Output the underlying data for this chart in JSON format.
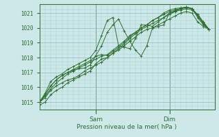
{
  "title": "",
  "xlabel": "Pression niveau de la mer( hPa )",
  "bg_color": "#cce8e8",
  "grid_color_minor": "#aacfcf",
  "grid_color_major": "#88bbbb",
  "line_color": "#2d6e2d",
  "axis_label_color": "#2d6e2d",
  "ylim": [
    1014.5,
    1021.6
  ],
  "xlim": [
    0,
    62
  ],
  "yticks": [
    1015,
    1016,
    1017,
    1018,
    1019,
    1020,
    1021
  ],
  "sam_x": 20,
  "dim_x": 46,
  "series": [
    {
      "x": [
        0,
        2,
        4,
        6,
        8,
        10,
        12,
        14,
        16,
        18,
        20,
        22,
        24,
        26,
        28,
        30,
        32,
        34,
        36,
        38,
        40,
        42,
        44,
        46,
        48,
        50,
        52,
        54,
        56,
        58,
        60
      ],
      "y": [
        1015.0,
        1015.3,
        1015.8,
        1016.1,
        1016.3,
        1016.5,
        1016.6,
        1016.8,
        1017.1,
        1017.3,
        1017.5,
        1017.7,
        1018.0,
        1018.3,
        1018.6,
        1018.9,
        1019.3,
        1019.6,
        1019.9,
        1020.1,
        1020.3,
        1020.5,
        1020.7,
        1020.9,
        1021.1,
        1021.2,
        1021.3,
        1021.2,
        1020.9,
        1020.4,
        1019.9
      ]
    },
    {
      "x": [
        0,
        2,
        4,
        6,
        8,
        10,
        12,
        14,
        16,
        18,
        20,
        22,
        24,
        26,
        28,
        30,
        32,
        34,
        36,
        38,
        40,
        42,
        44,
        46,
        48,
        50,
        52,
        54,
        56,
        58,
        60
      ],
      "y": [
        1015.0,
        1015.4,
        1015.9,
        1016.3,
        1016.6,
        1016.9,
        1017.1,
        1017.3,
        1017.5,
        1017.7,
        1017.9,
        1018.1,
        1018.2,
        1018.5,
        1018.8,
        1019.1,
        1019.5,
        1019.7,
        1020.0,
        1020.2,
        1020.5,
        1020.7,
        1020.9,
        1021.1,
        1021.2,
        1021.3,
        1021.35,
        1021.3,
        1020.8,
        1020.3,
        1019.9
      ]
    },
    {
      "x": [
        0,
        2,
        4,
        6,
        8,
        10,
        12,
        14,
        16,
        18,
        20,
        22,
        24,
        26,
        28,
        30,
        32,
        34,
        36,
        38,
        40,
        42,
        44,
        46,
        48,
        50,
        52,
        54,
        56,
        58,
        60
      ],
      "y": [
        1015.0,
        1015.5,
        1016.1,
        1016.5,
        1016.8,
        1017.0,
        1017.2,
        1017.4,
        1017.6,
        1017.8,
        1018.1,
        1018.2,
        1018.15,
        1018.4,
        1018.7,
        1019.0,
        1019.4,
        1019.7,
        1020.0,
        1020.2,
        1020.5,
        1020.7,
        1021.0,
        1021.2,
        1021.3,
        1021.35,
        1021.4,
        1021.3,
        1020.9,
        1020.4,
        1019.9
      ]
    },
    {
      "x": [
        0,
        2,
        4,
        6,
        8,
        10,
        12,
        14,
        16,
        18,
        20,
        22,
        24,
        26,
        28,
        30,
        32,
        34,
        36,
        38,
        40,
        42,
        44,
        46,
        48,
        50,
        52,
        54,
        56,
        58,
        60
      ],
      "y": [
        1015.0,
        1015.5,
        1016.1,
        1016.5,
        1016.8,
        1017.0,
        1017.15,
        1017.25,
        1017.3,
        1017.5,
        1018.15,
        1018.8,
        1019.7,
        1020.2,
        1020.6,
        1019.8,
        1019.1,
        1018.5,
        1018.1,
        1018.8,
        1020.0,
        1020.1,
        1020.2,
        1021.0,
        1021.15,
        1021.3,
        1021.4,
        1021.3,
        1020.8,
        1020.3,
        1019.9
      ]
    },
    {
      "x": [
        0,
        2,
        4,
        6,
        8,
        10,
        12,
        14,
        16,
        18,
        20,
        22,
        24,
        26,
        28,
        30,
        32,
        34,
        36,
        38,
        40,
        42,
        44,
        46,
        48,
        50,
        52,
        54,
        56,
        58,
        60
      ],
      "y": [
        1015.0,
        1015.6,
        1016.4,
        1016.7,
        1016.9,
        1017.2,
        1017.4,
        1017.6,
        1017.8,
        1018.0,
        1018.5,
        1019.5,
        1020.5,
        1020.7,
        1018.8,
        1018.7,
        1018.6,
        1019.3,
        1020.2,
        1020.2,
        1020.1,
        1020.4,
        1020.7,
        1021.0,
        1021.1,
        1021.3,
        1021.4,
        1021.3,
        1020.7,
        1020.2,
        1019.9
      ]
    },
    {
      "x": [
        0,
        2,
        4,
        6,
        8,
        10,
        12,
        14,
        16,
        18,
        20,
        22,
        24,
        26,
        28,
        30,
        32,
        34,
        36,
        38,
        40,
        42,
        44,
        46,
        48,
        50,
        52,
        54,
        56,
        58,
        60
      ],
      "y": [
        1014.8,
        1015.0,
        1015.5,
        1015.8,
        1016.0,
        1016.3,
        1016.5,
        1016.7,
        1016.9,
        1017.1,
        1017.6,
        1017.9,
        1018.0,
        1018.3,
        1018.5,
        1018.8,
        1019.1,
        1019.4,
        1019.7,
        1019.9,
        1020.0,
        1020.2,
        1020.4,
        1020.6,
        1020.8,
        1021.0,
        1021.1,
        1021.0,
        1020.4,
        1020.1,
        1019.9
      ]
    }
  ]
}
